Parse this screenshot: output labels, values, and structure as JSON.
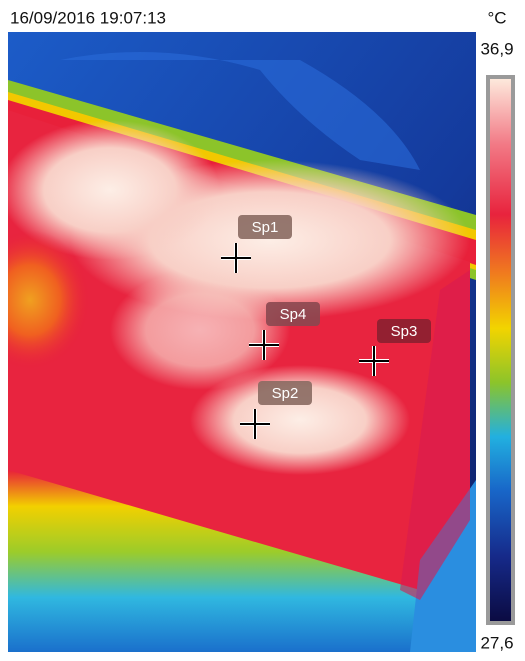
{
  "header": {
    "timestamp": "16/09/2016 19:07:13",
    "unit": "°C"
  },
  "scale": {
    "max": "36,9",
    "min": "27,6"
  },
  "spots": [
    {
      "label": "Sp1"
    },
    {
      "label": "Sp4"
    },
    {
      "label": "Sp3"
    },
    {
      "label": "Sp2"
    }
  ]
}
